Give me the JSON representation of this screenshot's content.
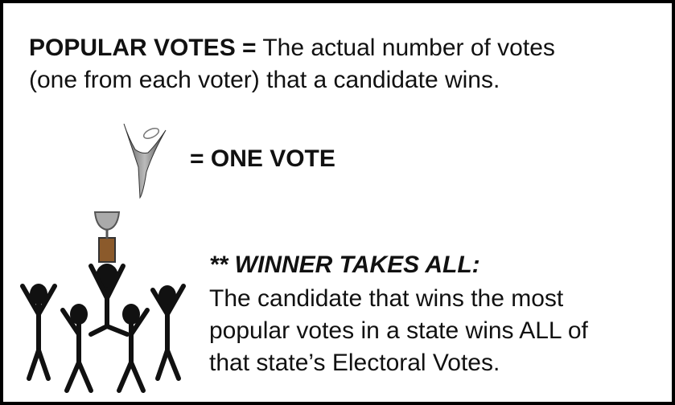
{
  "definition": {
    "term": "POPULAR VOTES =",
    "lines": [
      "The actual number of votes",
      "(one from each voter) that a candidate wins."
    ]
  },
  "icon_label": "= ONE VOTE",
  "winner": {
    "heading": "** WINNER TAKES ALL:",
    "lines": [
      "The candidate that wins the most",
      "popular votes in a state wins ALL of",
      "that state’s Electoral Votes."
    ]
  }
}
